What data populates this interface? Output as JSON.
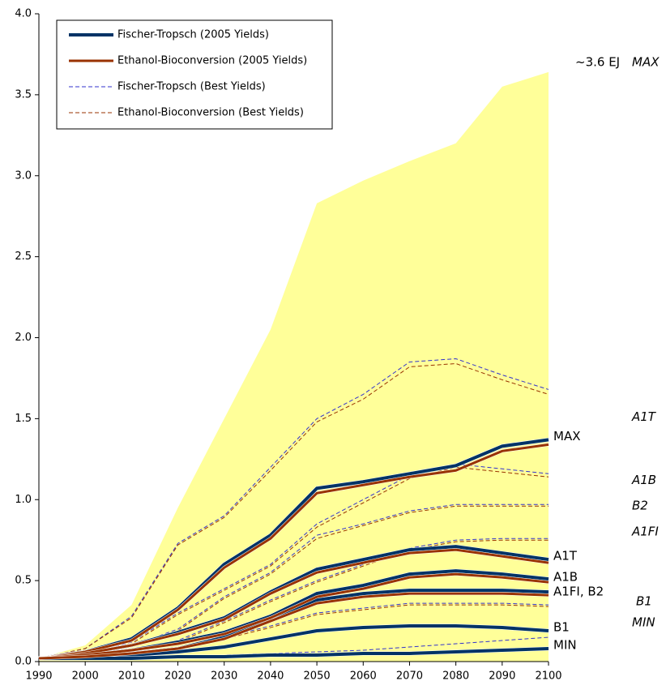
{
  "chart_data": {
    "type": "line",
    "x": [
      1990,
      2000,
      2010,
      2020,
      2030,
      2040,
      2050,
      2060,
      2070,
      2080,
      2090,
      2100
    ],
    "xlim": [
      1990,
      2100
    ],
    "xticks": [
      1990,
      2000,
      2010,
      2020,
      2030,
      2040,
      2050,
      2060,
      2070,
      2080,
      2090,
      2100
    ],
    "ylim": [
      0,
      4
    ],
    "yticks": [
      {
        "value": 0,
        "label": "0.0"
      },
      {
        "value": 0.5,
        "label": "0.5"
      },
      {
        "value": 1,
        "label": "1.0"
      },
      {
        "value": 1.5,
        "label": "1.5"
      },
      {
        "value": 2,
        "label": "2.0"
      },
      {
        "value": 2.5,
        "label": "2.5"
      },
      {
        "value": 3,
        "label": "3.0"
      },
      {
        "value": 3.5,
        "label": "3.5"
      },
      {
        "value": 4,
        "label": "4.0"
      }
    ],
    "area_color": "#ffff99",
    "area_values": [
      0.02,
      0.1,
      0.35,
      0.95,
      1.5,
      2.05,
      2.83,
      2.97,
      3.09,
      3.2,
      3.55,
      3.64
    ],
    "series": [
      {
        "name": "Fischer-Tropsch (Best Yields)",
        "color": "#3333cc",
        "width": 1,
        "dashed": true,
        "lines": [
          [
            0.02,
            0.08,
            0.28,
            0.73,
            0.9,
            1.2,
            1.5,
            1.65,
            1.85,
            1.87,
            1.77,
            1.68
          ],
          [
            0.02,
            0.05,
            0.12,
            0.3,
            0.45,
            0.6,
            0.85,
            1.0,
            1.15,
            1.22,
            1.19,
            1.16
          ],
          [
            0.02,
            0.04,
            0.1,
            0.2,
            0.4,
            0.55,
            0.78,
            0.85,
            0.93,
            0.97,
            0.97,
            0.97
          ],
          [
            0.02,
            0.03,
            0.07,
            0.13,
            0.25,
            0.38,
            0.5,
            0.6,
            0.7,
            0.75,
            0.76,
            0.76
          ],
          [
            0.02,
            0.03,
            0.05,
            0.08,
            0.15,
            0.22,
            0.3,
            0.33,
            0.36,
            0.36,
            0.36,
            0.35
          ],
          [
            0.02,
            0.02,
            0.03,
            0.03,
            0.04,
            0.05,
            0.06,
            0.07,
            0.09,
            0.11,
            0.13,
            0.15
          ]
        ]
      },
      {
        "name": "Ethanol-Bioconversion (Best Yields)",
        "color": "#993300",
        "width": 1,
        "dashed": true,
        "lines": [
          [
            0.02,
            0.08,
            0.27,
            0.72,
            0.89,
            1.18,
            1.48,
            1.62,
            1.82,
            1.84,
            1.74,
            1.65
          ],
          [
            0.02,
            0.05,
            0.11,
            0.29,
            0.44,
            0.59,
            0.83,
            0.98,
            1.13,
            1.2,
            1.17,
            1.14
          ],
          [
            0.02,
            0.04,
            0.1,
            0.19,
            0.39,
            0.54,
            0.76,
            0.84,
            0.92,
            0.96,
            0.96,
            0.96
          ],
          [
            0.02,
            0.03,
            0.07,
            0.12,
            0.24,
            0.37,
            0.49,
            0.59,
            0.69,
            0.74,
            0.75,
            0.75
          ],
          [
            0.02,
            0.03,
            0.05,
            0.08,
            0.14,
            0.21,
            0.29,
            0.32,
            0.35,
            0.35,
            0.35,
            0.34
          ]
        ]
      },
      {
        "name": "Fischer-Tropsch (2005 Yields)",
        "color": "#003366",
        "width": 4,
        "dashed": false,
        "lines": [
          [
            0.02,
            0.06,
            0.14,
            0.33,
            0.6,
            0.78,
            1.07,
            1.11,
            1.16,
            1.21,
            1.33,
            1.37
          ],
          [
            0.02,
            0.05,
            0.1,
            0.18,
            0.27,
            0.43,
            0.57,
            0.63,
            0.69,
            0.71,
            0.67,
            0.63
          ],
          [
            0.02,
            0.04,
            0.07,
            0.12,
            0.18,
            0.28,
            0.42,
            0.47,
            0.54,
            0.56,
            0.54,
            0.51
          ],
          [
            0.02,
            0.03,
            0.05,
            0.08,
            0.15,
            0.26,
            0.38,
            0.42,
            0.44,
            0.44,
            0.44,
            0.43
          ],
          [
            0.02,
            0.03,
            0.04,
            0.06,
            0.09,
            0.14,
            0.19,
            0.21,
            0.22,
            0.22,
            0.21,
            0.19
          ],
          [
            0.02,
            0.02,
            0.02,
            0.03,
            0.03,
            0.04,
            0.04,
            0.05,
            0.05,
            0.06,
            0.07,
            0.08
          ]
        ]
      },
      {
        "name": "Ethanol-Bioconversion (2005 Yields)",
        "color": "#993300",
        "width": 3,
        "dashed": false,
        "lines": [
          [
            0.02,
            0.06,
            0.13,
            0.32,
            0.58,
            0.76,
            1.04,
            1.09,
            1.14,
            1.18,
            1.3,
            1.34
          ],
          [
            0.02,
            0.05,
            0.1,
            0.17,
            0.26,
            0.42,
            0.55,
            0.61,
            0.67,
            0.69,
            0.65,
            0.61
          ],
          [
            0.02,
            0.04,
            0.07,
            0.11,
            0.17,
            0.27,
            0.4,
            0.45,
            0.52,
            0.54,
            0.52,
            0.49
          ],
          [
            0.02,
            0.03,
            0.05,
            0.08,
            0.14,
            0.25,
            0.36,
            0.4,
            0.42,
            0.42,
            0.42,
            0.41
          ]
        ]
      }
    ],
    "end_labels": [
      "MAX",
      "A1T",
      "A1B",
      "A1FI, B2",
      "B1",
      "MIN"
    ],
    "side_labels": [
      "~3.6 EJ",
      "MAX",
      "A1T",
      "A1B",
      "B2",
      "A1FI",
      "B1",
      "MIN"
    ]
  }
}
